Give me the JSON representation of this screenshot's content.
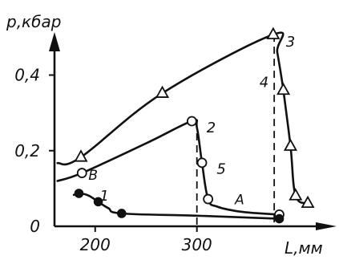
{
  "chart_data": {
    "type": "line",
    "ylabel": "p,кбар",
    "xlabel": "L,мм",
    "xlim": [
      160,
      420
    ],
    "ylim": [
      0,
      0.52
    ],
    "x_ticks": [
      {
        "value": 200,
        "label": "200"
      },
      {
        "value": 300,
        "label": "300"
      }
    ],
    "y_ticks": [
      {
        "value": 0,
        "label": "0"
      },
      {
        "value": 0.2,
        "label": "0,2"
      },
      {
        "value": 0.4,
        "label": "0,4"
      }
    ],
    "series": [
      {
        "name": "3",
        "marker": "triangle",
        "x": [
          163,
          186,
          266,
          375,
          379,
          385,
          392,
          397,
          409
        ],
        "y": [
          0.167,
          0.183,
          0.352,
          0.507,
          0.46,
          0.36,
          0.212,
          0.081,
          0.061
        ],
        "marker_indices": [
          1,
          2,
          3,
          5,
          6,
          7,
          8
        ]
      },
      {
        "name": "2",
        "marker": "circle-open",
        "x": [
          163,
          187,
          252,
          295,
          300,
          305,
          311,
          320,
          345,
          381
        ],
        "y": [
          0.12,
          0.141,
          0.222,
          0.278,
          0.261,
          0.168,
          0.072,
          0.052,
          0.038,
          0.031
        ],
        "marker_indices": [
          1,
          3,
          5,
          6,
          9
        ]
      },
      {
        "name": "1",
        "marker": "circle-filled",
        "x": [
          179,
          184,
          193,
          203,
          213,
          226,
          300,
          381
        ],
        "y": [
          0.083,
          0.087,
          0.082,
          0.065,
          0.048,
          0.034,
          0.028,
          0.02
        ],
        "marker_indices": [
          1,
          3,
          5,
          7
        ]
      }
    ],
    "dashed_lines": [
      {
        "name": "5",
        "x": 300,
        "y_top": 0.278
      },
      {
        "name": "4",
        "x": 376,
        "y_top": 0.507
      }
    ],
    "annotations": [
      {
        "text": "1",
        "x": 209,
        "y": 0.068
      },
      {
        "text": "2",
        "x": 314,
        "y": 0.248
      },
      {
        "text": "3",
        "x": 392,
        "y": 0.475
      },
      {
        "text": "4",
        "x": 366,
        "y": 0.368
      },
      {
        "text": "5",
        "x": 324,
        "y": 0.139
      },
      {
        "text": "A",
        "x": 342,
        "y": 0.058
      },
      {
        "text": "B",
        "x": 198,
        "y": 0.123
      }
    ]
  }
}
